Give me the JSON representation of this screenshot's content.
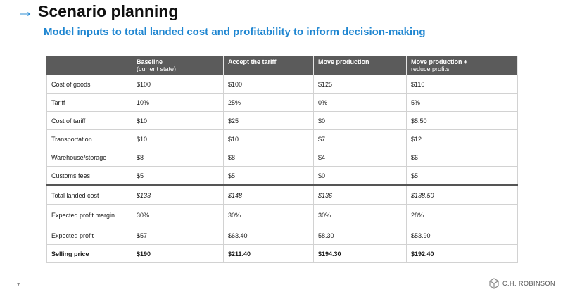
{
  "header": {
    "title": "Scenario planning",
    "subtitle": "Model inputs to total landed cost and profitability to inform decision-making"
  },
  "table": {
    "columns": [
      {
        "label": "",
        "sub": ""
      },
      {
        "label": "Baseline",
        "sub": "(current state)"
      },
      {
        "label": "Accept the tariff",
        "sub": ""
      },
      {
        "label": "Move production",
        "sub": ""
      },
      {
        "label": "Move production +",
        "sub": "reduce profits"
      }
    ],
    "rows": [
      {
        "label": "Cost of goods",
        "values": [
          "$100",
          "$100",
          "$125",
          "$110"
        ]
      },
      {
        "label": "Tariff",
        "values": [
          "10%",
          "25%",
          "0%",
          "5%"
        ]
      },
      {
        "label": "Cost of tariff",
        "values": [
          "$10",
          "$25",
          "$0",
          "$5.50"
        ]
      },
      {
        "label": "Transportation",
        "values": [
          "$10",
          "$10",
          "$7",
          "$12"
        ]
      },
      {
        "label": "Warehouse/storage",
        "values": [
          "$8",
          "$8",
          "$4",
          "$6"
        ]
      },
      {
        "label": "Customs fees",
        "values": [
          "$5",
          "$5",
          "$0",
          "$5"
        ]
      },
      {
        "label": "Total landed cost",
        "values": [
          "$133",
          "$148",
          "$136",
          "$138.50"
        ]
      },
      {
        "label": "Expected profit margin",
        "values": [
          "30%",
          "30%",
          "30%",
          "28%"
        ]
      },
      {
        "label": "Expected profit",
        "values": [
          "$57",
          "$63.40",
          "58.30",
          "$53.90"
        ]
      },
      {
        "label": "Selling price",
        "values": [
          "$190",
          "$211.40",
          "$194.30",
          "$192.40"
        ]
      }
    ]
  },
  "footer": {
    "page_number": "7",
    "logo_text": "C.H. ROBINSON",
    "logo_icon": "cube-logo-icon"
  },
  "colors": {
    "accent": "#1f86d1",
    "header_fill": "#5b5b5b"
  }
}
